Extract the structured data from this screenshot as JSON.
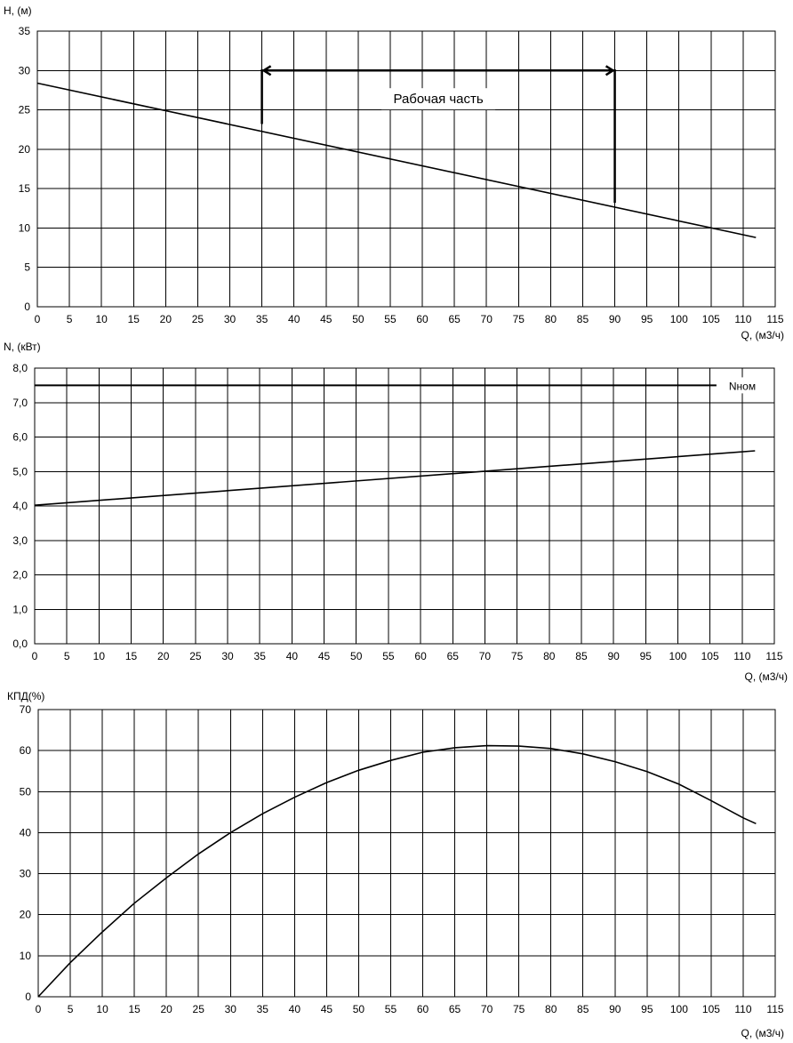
{
  "chart_data": [
    {
      "type": "line",
      "ylabel": "H, (м)",
      "xlabel": "Q, (м3/ч)",
      "xlim": [
        0,
        115
      ],
      "ylim": [
        0,
        35
      ],
      "x_ticks": [
        "0",
        "5",
        "10",
        "15",
        "20",
        "25",
        "30",
        "35",
        "40",
        "45",
        "50",
        "55",
        "60",
        "65",
        "70",
        "75",
        "80",
        "85",
        "90",
        "95",
        "100",
        "105",
        "110",
        "115"
      ],
      "y_ticks": [
        "0",
        "5",
        "10",
        "15",
        "20",
        "25",
        "30",
        "35"
      ],
      "grid": true,
      "series": [
        {
          "x": [
            0,
            112
          ],
          "values": [
            28.4,
            8.8
          ]
        }
      ],
      "working_zone": {
        "label": "Рабочая часть",
        "x_start": 35,
        "x_end": 90,
        "y_top": 30,
        "y_start": 23.2,
        "y_end": 13.2
      }
    },
    {
      "type": "line",
      "ylabel": "N, (кВт)",
      "xlabel": "Q, (м3/ч)",
      "xlim": [
        0,
        115
      ],
      "ylim": [
        0,
        8
      ],
      "x_ticks": [
        "0",
        "5",
        "10",
        "15",
        "20",
        "25",
        "30",
        "35",
        "40",
        "45",
        "50",
        "55",
        "60",
        "65",
        "70",
        "75",
        "80",
        "85",
        "90",
        "95",
        "100",
        "105",
        "110",
        "115"
      ],
      "y_ticks": [
        "0,0",
        "1,0",
        "2,0",
        "3,0",
        "4,0",
        "5,0",
        "6,0",
        "7,0",
        "8,0"
      ],
      "grid": true,
      "series": [
        {
          "x": [
            0,
            112
          ],
          "values": [
            4.02,
            5.6
          ]
        }
      ],
      "reference_line": {
        "label": "Nном",
        "value": 7.5,
        "x_start": 0,
        "x_end": 106
      }
    },
    {
      "type": "line",
      "ylabel": "КПД(%)",
      "xlabel": "Q, (м3/ч)",
      "xlim": [
        0,
        115
      ],
      "ylim": [
        0,
        70
      ],
      "x_ticks": [
        "0",
        "5",
        "10",
        "15",
        "20",
        "25",
        "30",
        "35",
        "40",
        "45",
        "50",
        "55",
        "60",
        "65",
        "70",
        "75",
        "80",
        "85",
        "90",
        "95",
        "100",
        "105",
        "110",
        "115"
      ],
      "y_ticks": [
        "0",
        "10",
        "20",
        "30",
        "40",
        "50",
        "60",
        "70"
      ],
      "grid": true,
      "series": [
        {
          "x": [
            0,
            5,
            10,
            15,
            20,
            25,
            30,
            35,
            40,
            45,
            50,
            55,
            60,
            65,
            70,
            75,
            80,
            85,
            90,
            95,
            100,
            105,
            110,
            112
          ],
          "values": [
            0,
            8.3,
            15.8,
            22.8,
            29.0,
            34.8,
            40.0,
            44.6,
            48.6,
            52.2,
            55.2,
            57.6,
            59.6,
            60.7,
            61.2,
            61.1,
            60.5,
            59.2,
            57.3,
            54.9,
            51.8,
            47.8,
            43.6,
            42.2
          ]
        }
      ]
    }
  ]
}
